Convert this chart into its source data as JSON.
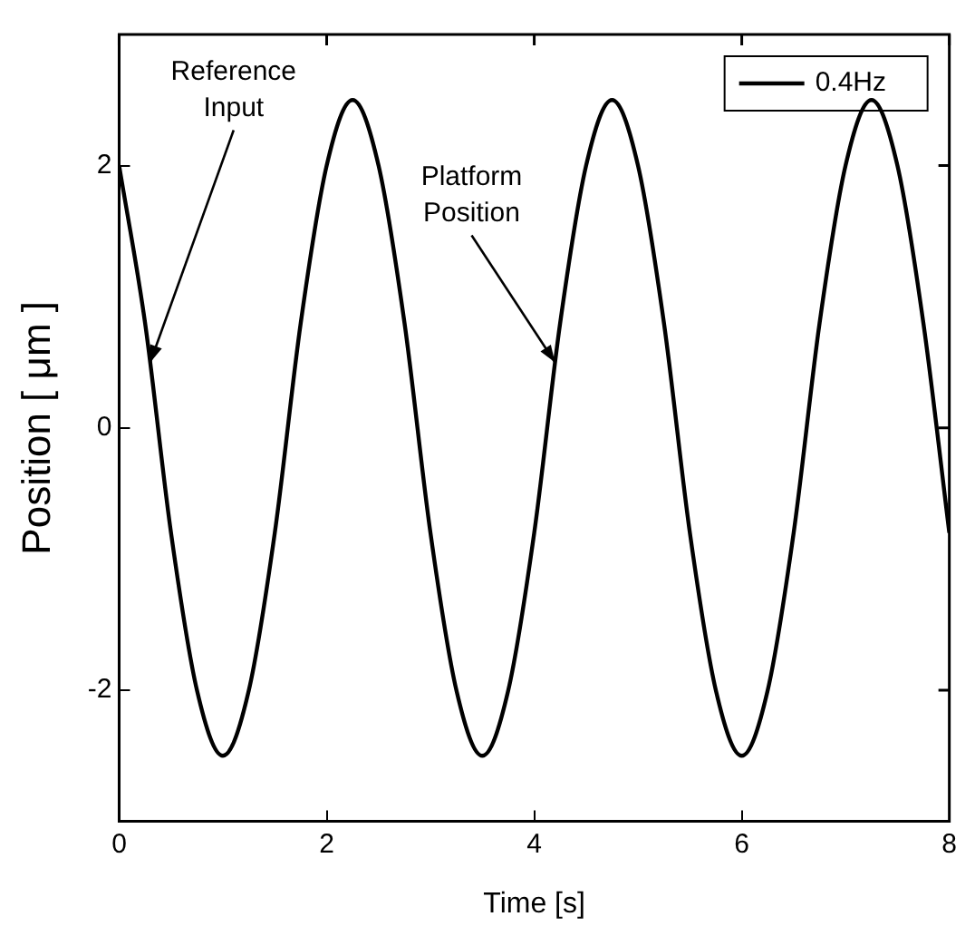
{
  "chart_data": {
    "type": "line",
    "xlabel": "Time [s]",
    "ylabel": "Position [ μm ]",
    "x": [
      0,
      0.25,
      0.5,
      0.75,
      1,
      1.25,
      1.5,
      1.75,
      2,
      2.25,
      2.5,
      2.75,
      3,
      3.25,
      3.5,
      3.75,
      4,
      4.25,
      4.5,
      4.75,
      5,
      5.25,
      5.5,
      5.75,
      6,
      6.25,
      6.5,
      6.75,
      7,
      7.25,
      7.5,
      7.75,
      8
    ],
    "series": [
      {
        "name": "0.4Hz",
        "color": "#000000",
        "values": [
          2.0,
          0.8,
          -0.8,
          -2.0,
          -2.5,
          -2.0,
          -0.8,
          0.8,
          2.0,
          2.5,
          2.0,
          0.8,
          -0.8,
          -2.0,
          -2.5,
          -2.0,
          -0.8,
          0.8,
          2.0,
          2.5,
          2.0,
          0.8,
          -0.8,
          -2.0,
          -2.5,
          -2.0,
          -0.8,
          0.8,
          2.0,
          2.5,
          2.0,
          0.8,
          -0.8
        ]
      }
    ],
    "xlim": [
      0,
      8
    ],
    "xticks": [
      0,
      2,
      4,
      6,
      8
    ],
    "ylim": [
      -3,
      3
    ],
    "yticks": [
      -2,
      0,
      2
    ],
    "grid": false,
    "legend": "top right",
    "marker": "none",
    "line_style": "solid",
    "annotations": [
      {
        "text": "Reference Input",
        "x": 0.3,
        "y": 0.5
      },
      {
        "text": "Platform Position",
        "x": 4.2,
        "y": 0.5
      }
    ]
  }
}
